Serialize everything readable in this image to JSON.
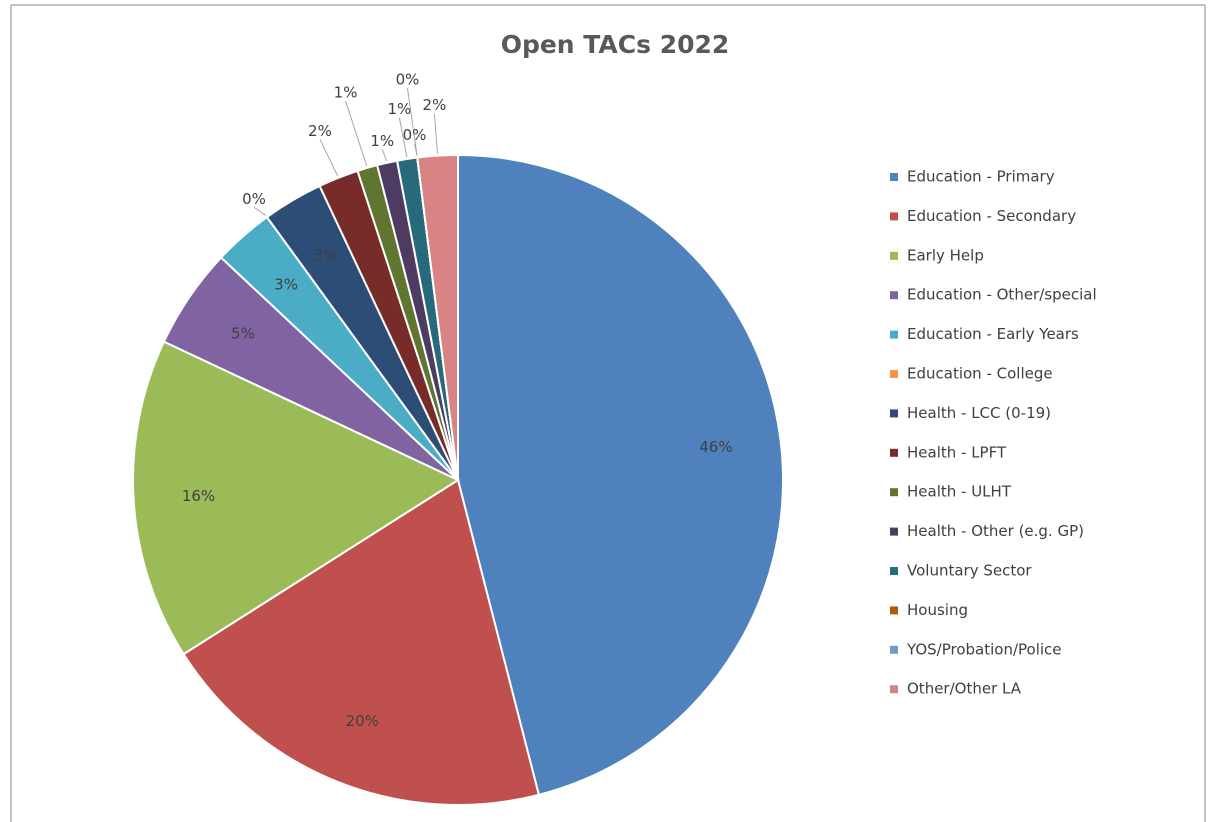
{
  "chart_data": {
    "type": "pie",
    "title": "Open TACs 2022",
    "categories": [
      "Education - Primary",
      "Education - Secondary",
      "Early Help",
      "Education - Other/special",
      "Education - Early Years",
      "Education - College",
      "Health - LCC (0-19)",
      "Health - LPFT",
      "Health - ULHT",
      "Health - Other (e.g. GP)",
      "Voluntary Sector",
      "Housing",
      "YOS/Probation/Police",
      "Other/Other LA"
    ],
    "values": [
      46,
      20,
      16,
      5,
      3,
      0,
      3,
      2,
      1,
      1,
      1,
      0,
      0,
      2
    ],
    "value_labels": [
      "46%",
      "20%",
      "16%",
      "5%",
      "3%",
      "0%",
      "3%",
      "2%",
      "1%",
      "1%",
      "1%",
      "0%",
      "0%",
      "2%"
    ],
    "colors": [
      "#4f81bd",
      "#c0504d",
      "#9bbb59",
      "#8064a2",
      "#4bacc6",
      "#f79646",
      "#2c4d75",
      "#772c2a",
      "#5f7530",
      "#4d3b62",
      "#276a7c",
      "#b65708",
      "#729aca",
      "#d98484"
    ],
    "legend": "right"
  }
}
